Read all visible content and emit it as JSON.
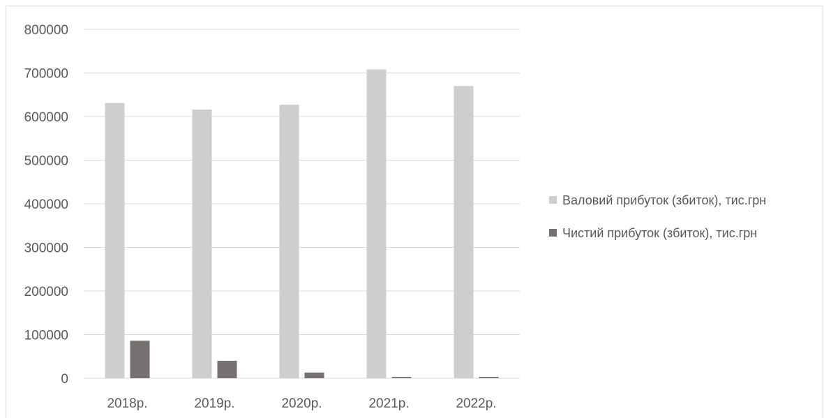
{
  "chart_data": {
    "type": "bar",
    "title": "",
    "xlabel": "",
    "ylabel": "",
    "categories": [
      "2018р.",
      "2019р.",
      "2020р.",
      "2021р.",
      "2022р."
    ],
    "series": [
      {
        "name": "Валовий прибуток (збиток), тис.грн",
        "color": "#cfcecf",
        "values": [
          631000,
          616000,
          627000,
          708000,
          670000
        ]
      },
      {
        "name": "Чистий прибуток (збиток), тис.грн",
        "color": "#757171",
        "values": [
          86000,
          40000,
          13000,
          3000,
          3000
        ]
      }
    ],
    "ylim": [
      0,
      800000
    ],
    "yticks": [
      0,
      100000,
      200000,
      300000,
      400000,
      500000,
      600000,
      700000,
      800000
    ],
    "ytick_labels": [
      "0",
      "100000",
      "200000",
      "300000",
      "400000",
      "500000",
      "600000",
      "700000",
      "800000"
    ],
    "grid": true,
    "legend": "right",
    "colors": {
      "gridline": "#d9d9d9",
      "axis_text": "#595959"
    }
  }
}
